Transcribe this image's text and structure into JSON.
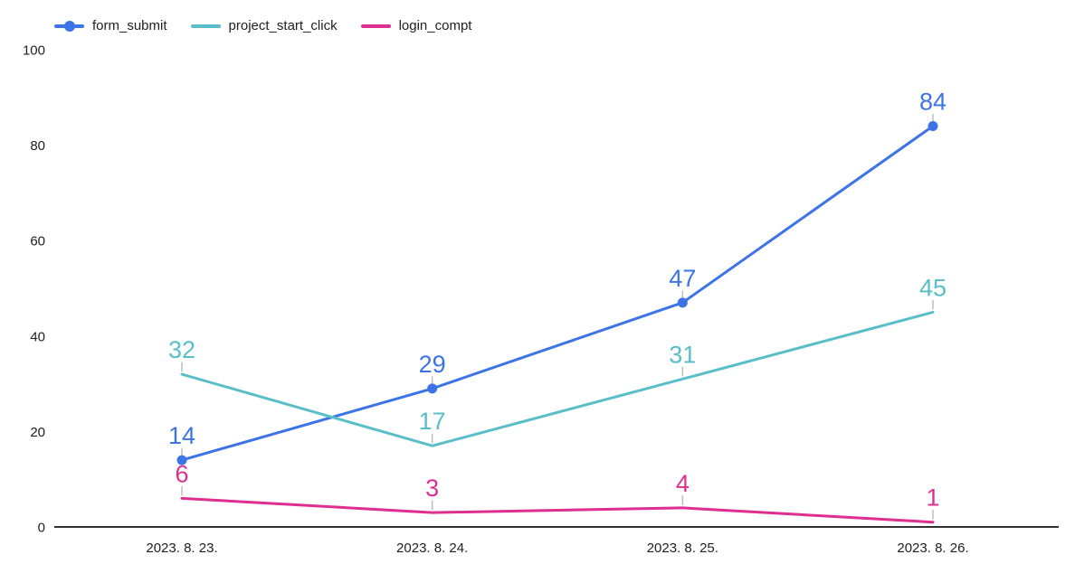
{
  "chart_data": {
    "type": "line",
    "categories": [
      "2023. 8. 23.",
      "2023. 8. 24.",
      "2023. 8. 25.",
      "2023. 8. 26."
    ],
    "series": [
      {
        "name": "form_submit",
        "values": [
          14,
          29,
          47,
          84
        ],
        "color": "#3C74E8",
        "marker": "circle"
      },
      {
        "name": "project_start_click",
        "values": [
          32,
          17,
          31,
          45
        ],
        "color": "#5ABEC9",
        "marker": "none"
      },
      {
        "name": "login_compt",
        "values": [
          6,
          3,
          4,
          1
        ],
        "color": "#DE2F90",
        "marker": "none"
      }
    ],
    "y_ticks": [
      0,
      20,
      40,
      60,
      80,
      100
    ],
    "ylim": [
      0,
      100
    ],
    "title": "",
    "xlabel": "",
    "ylabel": "",
    "grid": "off",
    "legend_position": "top-left",
    "value_labels": "on",
    "axis_color": "#333333",
    "leader_line_color": "#BDBDBD",
    "tick_text_color": "#212121"
  }
}
